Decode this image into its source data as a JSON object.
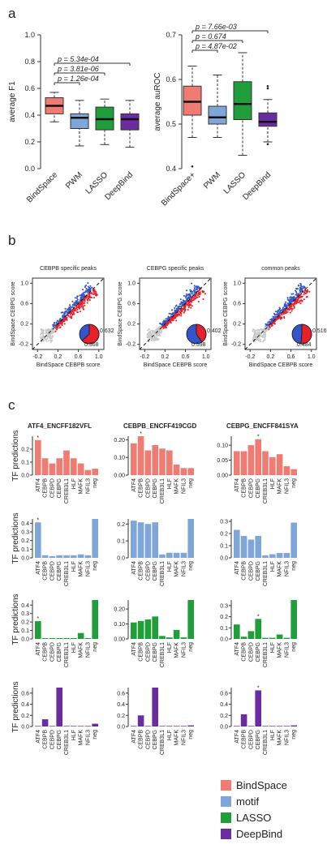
{
  "panel_labels": {
    "a": "a",
    "b": "b",
    "c": "c"
  },
  "colors": {
    "bindspace": "#f07b72",
    "motif": "#7fa6d8",
    "lasso": "#1f9e3a",
    "deepbind": "#6a2ca0",
    "grey": "#c8c8c8",
    "red": "#e8202a",
    "blue": "#3355c8"
  },
  "legend": [
    {
      "label": "BindSpace",
      "color": "#f07b72"
    },
    {
      "label": "motif",
      "color": "#7fa6d8"
    },
    {
      "label": "LASSO",
      "color": "#1f9e3a"
    },
    {
      "label": "DeepBind",
      "color": "#6a2ca0"
    }
  ],
  "chart_data": [
    {
      "id": "a-f1",
      "type": "box",
      "ylabel": "average F1",
      "ylim": [
        0.0,
        1.0
      ],
      "yticks": [
        "0.0",
        "0.2",
        "0.4",
        "0.6",
        "0.8",
        "1.0"
      ],
      "categories": [
        "BindSpace",
        "PWM",
        "LASSO",
        "DeepBind"
      ],
      "boxes": [
        {
          "min": 0.35,
          "q1": 0.41,
          "median": 0.47,
          "q3": 0.53,
          "max": 0.57
        },
        {
          "min": 0.17,
          "q1": 0.3,
          "median": 0.38,
          "q3": 0.41,
          "max": 0.51
        },
        {
          "min": 0.18,
          "q1": 0.29,
          "median": 0.37,
          "q3": 0.46,
          "max": 0.52
        },
        {
          "min": 0.16,
          "q1": 0.29,
          "median": 0.37,
          "q3": 0.41,
          "max": 0.51
        }
      ],
      "pvalues": [
        "p = 5.34e-04",
        "p = 3.81e-06",
        "p = 1.26e-04"
      ]
    },
    {
      "id": "a-auroc",
      "type": "box",
      "ylabel": "average auROC",
      "ylim": [
        0.4,
        0.7
      ],
      "yticks": [
        "0.4",
        "0.5",
        "0.6",
        "0.7"
      ],
      "categories": [
        "BindSpace+",
        "PWM",
        "LASSO",
        "DeepBind"
      ],
      "boxes": [
        {
          "min": 0.47,
          "q1": 0.52,
          "median": 0.55,
          "q3": 0.585,
          "max": 0.63,
          "outliers": [
            0.405
          ]
        },
        {
          "min": 0.47,
          "q1": 0.5,
          "median": 0.515,
          "q3": 0.54,
          "max": 0.61
        },
        {
          "min": 0.43,
          "q1": 0.51,
          "median": 0.545,
          "q3": 0.595,
          "max": 0.66
        },
        {
          "min": 0.46,
          "q1": 0.495,
          "median": 0.505,
          "q3": 0.525,
          "max": 0.555,
          "outliers": [
            0.455,
            0.58,
            0.585
          ]
        }
      ],
      "pvalues": [
        "p = 7.66e-03",
        "p = 0.674",
        "p = 4.87e-02"
      ]
    },
    {
      "id": "b1",
      "type": "scatter",
      "title": "CEBPB specific peaks",
      "xlabel": "BindSpace CEBPB score",
      "ylabel": "BindSpace CEBPG score",
      "xticks": [
        "-0.2",
        "0.2",
        "0.6",
        "1.0"
      ],
      "yticks": [
        "-0.2",
        "0.2",
        "0.6",
        "1.0"
      ],
      "pie": [
        0.632,
        0.368
      ],
      "pie_labels": [
        "0.632",
        "0.368"
      ]
    },
    {
      "id": "b2",
      "type": "scatter",
      "title": "CEBPG specific peaks",
      "xlabel": "BindSpace CEBPB score",
      "ylabel": "BindSpace CEBPG score",
      "xticks": [
        "-0.2",
        "0.2",
        "0.6",
        "1.0"
      ],
      "yticks": [
        "-0.2",
        "0.2",
        "0.6",
        "1.0"
      ],
      "pie": [
        0.402,
        0.598
      ],
      "pie_labels": [
        "0.402",
        "0.598"
      ]
    },
    {
      "id": "b3",
      "type": "scatter",
      "title": "common peaks",
      "xlabel": "BindSpace CEBPB score",
      "ylabel": "BindSpace CEBPG score",
      "xticks": [
        "-0.2",
        "0.2",
        "0.6",
        "1.0"
      ],
      "yticks": [
        "-0.2",
        "0.2",
        "0.6",
        "1.0"
      ],
      "pie": [
        0.516,
        0.484
      ],
      "pie_labels": [
        "0.516",
        "0.484"
      ]
    },
    {
      "id": "c",
      "type": "bar",
      "ylabel": "TF predictions",
      "categories": [
        "ATF4",
        "CEBPB",
        "CEBPD",
        "CEBPG",
        "CREB3L1",
        "HLF",
        "MAFK",
        "NFIL3",
        "neg"
      ],
      "columns": [
        "ATF4_ENCFF182VFL",
        "CEBPB_ENCFF419CGD",
        "CEBPG_ENCFF841SYA"
      ],
      "rows": [
        {
          "method": "BindSpace",
          "panels": [
            {
              "ymax": 0.3,
              "yticks": [
                "0.0",
                "0.1",
                "0.2"
              ],
              "values": [
                0.27,
                0.13,
                0.09,
                0.13,
                0.19,
                0.13,
                0.09,
                0.04,
                0.05
              ],
              "star": 0
            },
            {
              "ymax": 0.22,
              "yticks": [
                "0.00",
                "0.10",
                "0.20"
              ],
              "values": [
                0.18,
                0.22,
                0.14,
                0.17,
                0.15,
                0.14,
                0.06,
                0.04,
                0.04
              ],
              "star": 1
            },
            {
              "ymax": 0.13,
              "yticks": [
                "0.00",
                "0.05",
                "0.10"
              ],
              "values": [
                0.08,
                0.08,
                0.1,
                0.12,
                0.08,
                0.06,
                0.07,
                0.03,
                0.02
              ],
              "star": 3
            }
          ]
        },
        {
          "method": "motif",
          "panels": [
            {
              "ymax": 0.45,
              "yticks": [
                "0.0",
                "0.1",
                "0.2",
                "0.3",
                "0.4"
              ],
              "values": [
                0.41,
                0.03,
                0.02,
                0.03,
                0.03,
                0.03,
                0.04,
                0.03,
                0.45
              ],
              "star": 0
            },
            {
              "ymax": 0.23,
              "yticks": [
                "0.0",
                "0.1",
                "0.2"
              ],
              "values": [
                0.22,
                0.21,
                0.2,
                0.21,
                0.02,
                0.03,
                0.03,
                0.03,
                0.23
              ],
              "star": null
            },
            {
              "ymax": 0.32,
              "yticks": [
                "0.0",
                "0.1",
                "0.2",
                "0.3"
              ],
              "values": [
                0.23,
                0.18,
                0.15,
                0.18,
                0.02,
                0.03,
                0.04,
                0.04,
                0.29
              ],
              "star": null
            }
          ]
        },
        {
          "method": "LASSO",
          "panels": [
            {
              "ymax": 0.46,
              "yticks": [
                "0.0",
                "0.1",
                "0.2",
                "0.3",
                "0.4"
              ],
              "values": [
                0.21,
                0.01,
                0.01,
                0.01,
                0.01,
                0.01,
                0.07,
                0.01,
                0.46
              ],
              "star": 0
            },
            {
              "ymax": 0.26,
              "yticks": [
                "0.00",
                "0.10",
                "0.20"
              ],
              "values": [
                0.11,
                0.12,
                0.13,
                0.15,
                0.02,
                0.01,
                0.06,
                0.01,
                0.26
              ],
              "star": null
            },
            {
              "ymax": 0.35,
              "yticks": [
                "0.0",
                "0.1",
                "0.2",
                "0.3"
              ],
              "values": [
                0.13,
                0.02,
                0.07,
                0.18,
                0.01,
                0.01,
                0.04,
                0.01,
                0.35
              ],
              "star": 3
            }
          ]
        },
        {
          "method": "DeepBind",
          "panels": [
            {
              "ymax": 0.7,
              "yticks": [
                "0.0",
                "0.2",
                "0.4",
                "0.6"
              ],
              "values": [
                0.01,
                0.13,
                0.01,
                0.7,
                0.01,
                0.01,
                0.01,
                0.01,
                0.05
              ],
              "star": null
            },
            {
              "ymax": 0.7,
              "yticks": [
                "0.0",
                "0.2",
                "0.4",
                "0.6"
              ],
              "values": [
                0.01,
                0.2,
                0.01,
                0.7,
                0.01,
                0.01,
                0.01,
                0.01,
                0.02
              ],
              "star": null
            },
            {
              "ymax": 0.7,
              "yticks": [
                "0.0",
                "0.2",
                "0.4",
                "0.6"
              ],
              "values": [
                0.01,
                0.22,
                0.01,
                0.65,
                0.01,
                0.01,
                0.01,
                0.01,
                0.02
              ],
              "star": 3
            }
          ]
        }
      ]
    }
  ]
}
